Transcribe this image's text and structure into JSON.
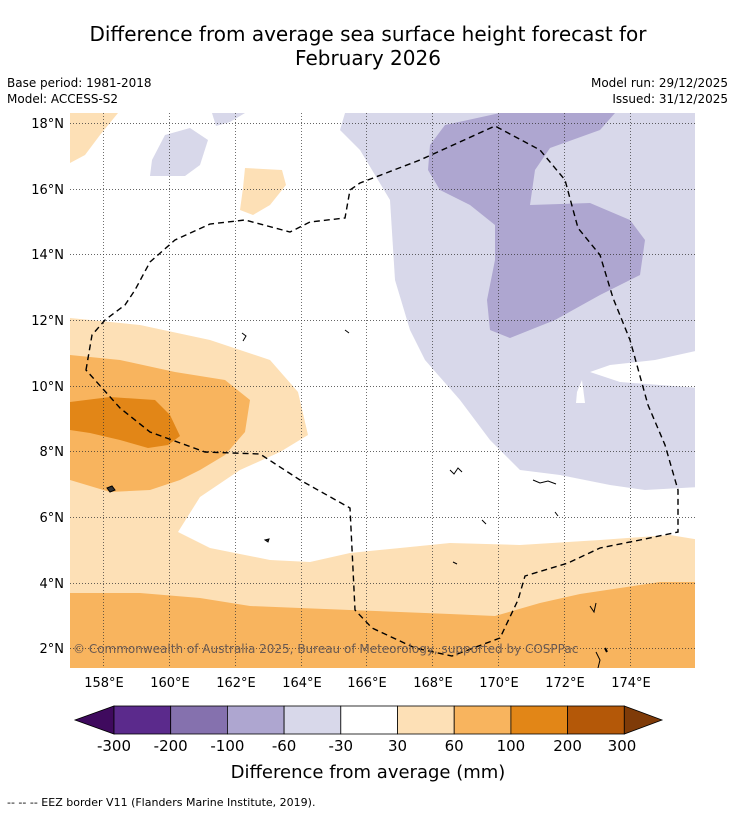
{
  "title": {
    "line1": "Difference from average sea surface height forecast for",
    "line2": "February 2026"
  },
  "meta": {
    "base_period": "Base period: 1981-2018",
    "model": "Model: ACCESS-S2",
    "model_run": "Model run: 29/12/2025",
    "issued": "Issued: 31/12/2025"
  },
  "map": {
    "lat_labels": [
      "18°N",
      "16°N",
      "14°N",
      "12°N",
      "10°N",
      "8°N",
      "6°N",
      "4°N",
      "2°N"
    ],
    "lon_labels": [
      "158°E",
      "160°E",
      "162°E",
      "164°E",
      "166°E",
      "168°E",
      "170°E",
      "172°E",
      "174°E"
    ],
    "copyright": "© Commonwealth of Australia 2025, Bureau of Meteorology, supported by COSPPac",
    "grid_on": true
  },
  "legend": {
    "tick_labels": [
      "-300",
      "-200",
      "-100",
      "-60",
      "-30",
      "30",
      "60",
      "100",
      "200",
      "300"
    ],
    "label": "Difference from average (mm)",
    "colors": [
      "#3f0a5e",
      "#5b2a8c",
      "#8571ae",
      "#aea6d0",
      "#d8d8ea",
      "#ffffff",
      "#fde0b6",
      "#f8b45e",
      "#e28617",
      "#b45808",
      "#7f3b08"
    ]
  },
  "footnote": "--  --  -- EEZ border V11 (Flanders Marine Institute, 2019)."
}
